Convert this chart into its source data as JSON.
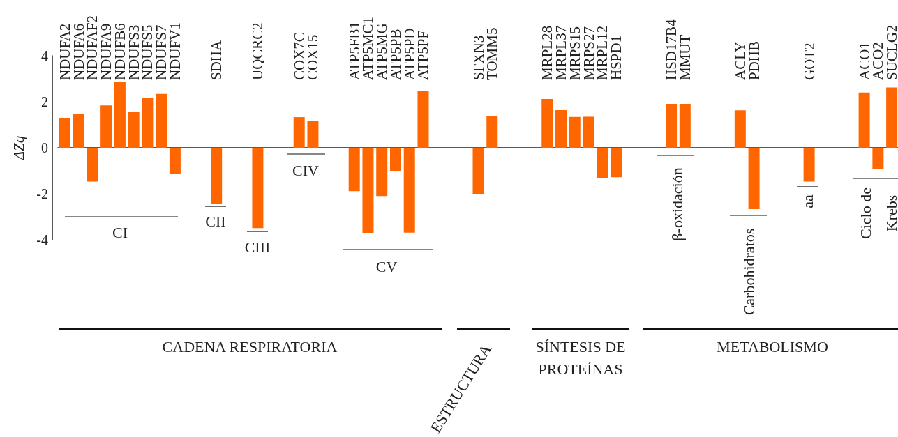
{
  "chart_data": {
    "type": "bar",
    "ylabel": "ΔZq",
    "color": "#ff6600",
    "categories": [
      "NDUFA2",
      "NDUFA6",
      "NDUFAF2",
      "NDUFA9",
      "NDUFB6",
      "NDUFS3",
      "NDUFS5",
      "NDUFS7",
      "NDUFV1",
      null,
      null,
      "SDHA",
      null,
      null,
      "UQCRC2",
      null,
      null,
      "COX7C",
      "COX15",
      null,
      null,
      "ATP5FB1",
      "ATP5MC1",
      "ATP5MG",
      "ATP5PB",
      "ATP5PD",
      "ATP5PF",
      null,
      null,
      null,
      "SFXN3",
      "TOMM5",
      null,
      null,
      null,
      "MRPL28",
      "MRPL37",
      "MRPS15",
      "MRPS27",
      "MRPL12",
      "HSPD1",
      null,
      null,
      null,
      "HSD17B4",
      "MMUT",
      null,
      null,
      null,
      "ACLY",
      "PDHB",
      null,
      null,
      null,
      "GOT2",
      null,
      null,
      null,
      "ACO1",
      "ACO2",
      "SUCLG2"
    ],
    "values": [
      1.28,
      1.48,
      -1.47,
      1.84,
      2.87,
      1.55,
      2.18,
      2.34,
      -1.13,
      null,
      null,
      -2.43,
      null,
      null,
      -3.49,
      null,
      null,
      1.33,
      1.17,
      null,
      null,
      -1.89,
      -3.72,
      -2.1,
      -1.03,
      -3.69,
      2.46,
      null,
      null,
      null,
      -2.01,
      1.39,
      null,
      null,
      null,
      2.12,
      1.64,
      1.34,
      1.35,
      -1.31,
      -1.28,
      null,
      null,
      null,
      1.91,
      1.91,
      null,
      null,
      null,
      1.63,
      -2.67,
      null,
      null,
      null,
      -1.47,
      null,
      null,
      null,
      2.4,
      -0.94,
      2.62
    ],
    "ylim": [
      -4,
      4
    ],
    "yticks": [
      -4,
      -2,
      0,
      2,
      4
    ],
    "annotations": [
      "CI",
      "CII",
      "CIII",
      "CIV",
      "CV",
      "β-oxidación",
      "Carbohidratos",
      "aa",
      "Ciclo de Krebs",
      "CADENA RESPIRATORIA",
      "ESTRUCTURA",
      "SÍNTESIS DE PROTEÍNAS",
      "METABOLISMO"
    ]
  }
}
